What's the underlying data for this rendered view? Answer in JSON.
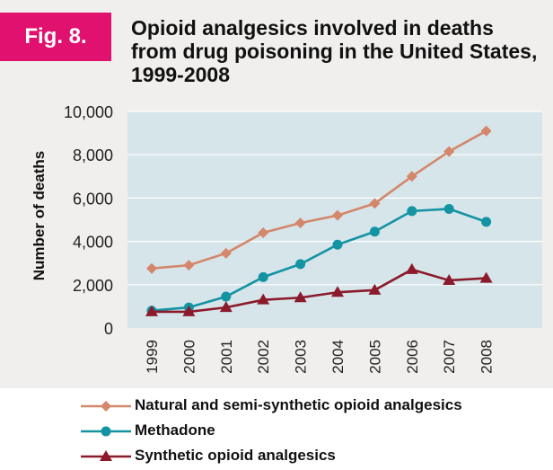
{
  "figure": {
    "label": "Fig. 8.",
    "title": "Opioid analgesics involved in deaths from drug poisoning in the United States, 1999-2008"
  },
  "colors": {
    "accent": "#e0116f",
    "plot_bg": "#d6e5ea",
    "panel_bg": "#f1efed"
  },
  "chart_data": {
    "type": "line",
    "ylabel": "Number of deaths",
    "xlabel": "",
    "categories": [
      "1999",
      "2000",
      "2001",
      "2002",
      "2003",
      "2004",
      "2005",
      "2006",
      "2007",
      "2008"
    ],
    "ylim": [
      0,
      10000
    ],
    "yticks": [
      0,
      2000,
      4000,
      6000,
      8000,
      10000
    ],
    "ytick_labels": [
      "0",
      "2,000",
      "4,000",
      "6,000",
      "8,000",
      "10,000"
    ],
    "grid": true,
    "legend_position": "bottom",
    "series": [
      {
        "name": "Natural and semi-synthetic opioid analgesics",
        "color": "#d4876a",
        "marker": "diamond",
        "values": [
          2750,
          2900,
          3450,
          4400,
          4850,
          5200,
          5750,
          7000,
          8150,
          9100
        ]
      },
      {
        "name": "Methadone",
        "color": "#1493a3",
        "marker": "circle",
        "values": [
          800,
          950,
          1450,
          2350,
          2950,
          3850,
          4450,
          5400,
          5500,
          4900
        ]
      },
      {
        "name": "Synthetic opioid analgesics",
        "color": "#8b1a2b",
        "marker": "triangle",
        "values": [
          750,
          750,
          950,
          1300,
          1400,
          1650,
          1750,
          2700,
          2200,
          2300
        ]
      }
    ]
  }
}
